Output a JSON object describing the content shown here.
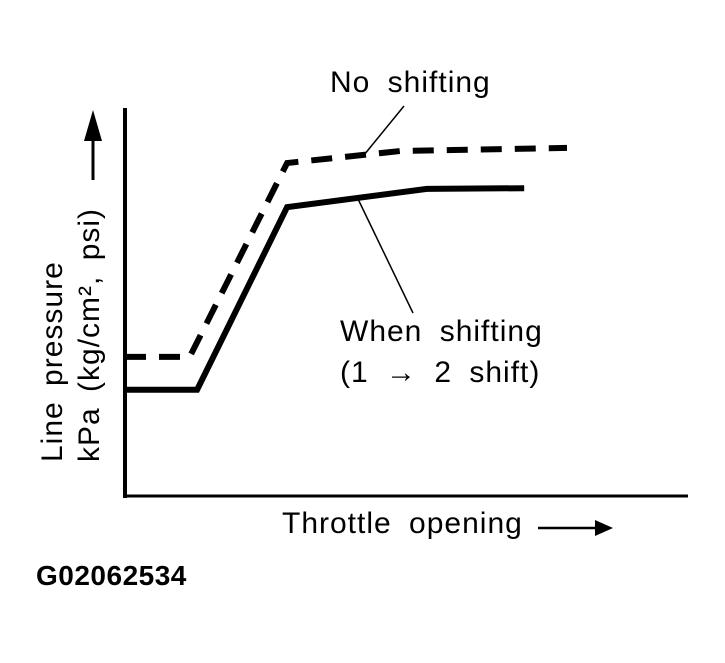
{
  "figure_id": "G02062534",
  "colors": {
    "ink": "#000000",
    "background": "#ffffff"
  },
  "chart_data": {
    "type": "line",
    "title": "",
    "xlabel": "Throttle opening",
    "ylabel": "Line pressure kPa (kg/cm², psi)",
    "ylabel_line1": "Line pressure",
    "ylabel_line2": "kPa (kg/cm², psi)",
    "x_axis": {
      "min": 0,
      "max": 1,
      "ticks": [],
      "qualitative": true,
      "arrow": true
    },
    "y_axis": {
      "min": 0,
      "max": 1,
      "ticks": [],
      "qualitative": true,
      "arrow": true
    },
    "grid": false,
    "legend_position": "inline-annotations",
    "series": [
      {
        "name": "No shifting",
        "label": "No shifting",
        "line_style": "dashed",
        "points": [
          [
            0.0,
            0.362
          ],
          [
            0.115,
            0.362
          ],
          [
            0.288,
            0.863
          ],
          [
            0.489,
            0.894
          ],
          [
            0.785,
            0.902
          ]
        ]
      },
      {
        "name": "When shifting (1 → 2 shift)",
        "label_line1": "When shifting",
        "label_line2": "(1 → 2 shift)",
        "line_style": "solid",
        "points": [
          [
            0.0,
            0.277
          ],
          [
            0.128,
            0.277
          ],
          [
            0.288,
            0.749
          ],
          [
            0.536,
            0.796
          ],
          [
            0.709,
            0.798
          ]
        ]
      }
    ]
  }
}
